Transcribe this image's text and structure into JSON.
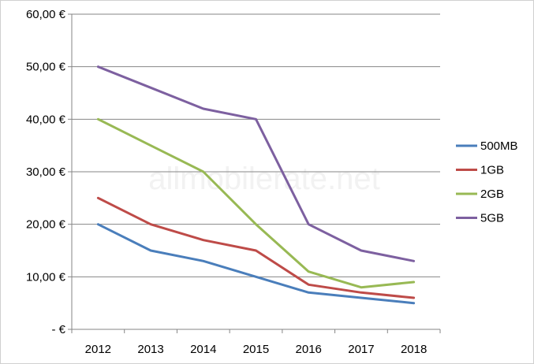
{
  "chart_data": {
    "type": "line",
    "categories": [
      "2012",
      "2013",
      "2014",
      "2015",
      "2016",
      "2017",
      "2018"
    ],
    "series": [
      {
        "name": "500MB",
        "color": "#4a7ebb",
        "values": [
          20,
          15,
          13,
          10,
          7,
          6,
          5
        ]
      },
      {
        "name": "1GB",
        "color": "#be4b48",
        "values": [
          25,
          20,
          17,
          15,
          8.5,
          7,
          6
        ]
      },
      {
        "name": "2GB",
        "color": "#98b954",
        "values": [
          40,
          35,
          30,
          20,
          11,
          8,
          9
        ]
      },
      {
        "name": "5GB",
        "color": "#7d60a0",
        "values": [
          50,
          46,
          42,
          40,
          20,
          15,
          13
        ]
      }
    ],
    "ylim": [
      0,
      60
    ],
    "y_ticks": [
      0,
      10,
      20,
      30,
      40,
      50,
      60
    ],
    "y_tick_labels": [
      "-  €",
      "10,00 €",
      "20,00 €",
      "30,00 €",
      "40,00 €",
      "50,00 €",
      "60,00 €"
    ],
    "grid": true,
    "legend_position": "right",
    "watermark": "allmobilerate.net",
    "title": "",
    "xlabel": "",
    "ylabel": ""
  }
}
